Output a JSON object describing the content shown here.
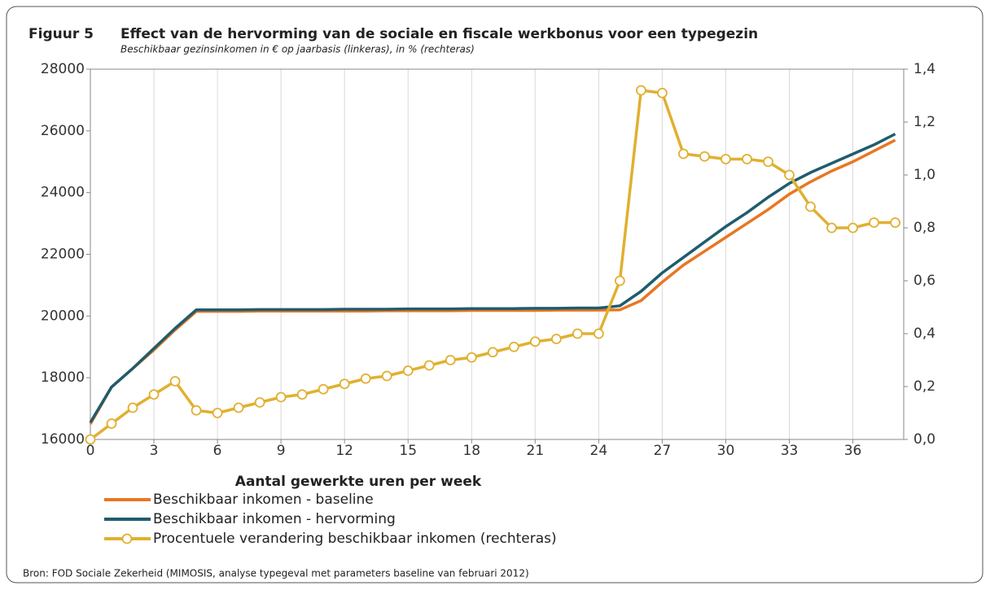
{
  "chart_data": {
    "type": "line",
    "title_label": "Figuur 5",
    "title": "Effect van de hervorming van de sociale en fiscale werkbonus voor een typegezin",
    "subtitle": "Beschikbaar gezinsinkomen in € op jaarbasis (linkeras), in % (rechteras)",
    "x_label": "Aantal gewerkte uren per week",
    "source": "Bron: FOD Sociale Zekerheid (MIMOSIS, analyse typegeval met parameters baseline van februari 2012)",
    "x": [
      0,
      1,
      2,
      3,
      4,
      5,
      6,
      7,
      8,
      9,
      10,
      11,
      12,
      13,
      14,
      15,
      16,
      17,
      18,
      19,
      20,
      21,
      22,
      23,
      24,
      25,
      26,
      27,
      28,
      29,
      30,
      31,
      32,
      33,
      34,
      35,
      36,
      37,
      38
    ],
    "xlim": [
      0,
      38.4
    ],
    "xticks": [
      0,
      3,
      6,
      9,
      12,
      15,
      18,
      21,
      24,
      27,
      30,
      33,
      36
    ],
    "ylim": [
      16000,
      28000
    ],
    "yticks": [
      16000,
      18000,
      20000,
      22000,
      24000,
      26000,
      28000
    ],
    "y2lim": [
      0,
      1.4
    ],
    "y2ticks": [
      {
        "value": 0,
        "label": "0,0"
      },
      {
        "value": 0.2,
        "label": "0,2"
      },
      {
        "value": 0.4,
        "label": "0,4"
      },
      {
        "value": 0.6,
        "label": "0,6"
      },
      {
        "value": 0.8,
        "label": "0,8"
      },
      {
        "value": 1.0,
        "label": "1,0"
      },
      {
        "value": 1.2,
        "label": "1,2"
      },
      {
        "value": 1.4,
        "label": "1,4"
      }
    ],
    "grid": true,
    "series": [
      {
        "name": "Beschikbaar inkomen - baseline",
        "color": "#e87722",
        "values": [
          16500,
          17700,
          18300,
          18900,
          19550,
          20150,
          20150,
          20150,
          20160,
          20160,
          20160,
          20160,
          20160,
          20160,
          20170,
          20170,
          20170,
          20170,
          20180,
          20180,
          20180,
          20180,
          20190,
          20190,
          20190,
          20200,
          20500,
          21100,
          21650,
          22100,
          22550,
          23000,
          23450,
          23950,
          24350,
          24700,
          25000,
          25350,
          25700
        ]
      },
      {
        "name": "Beschikbaar inkomen - hervorming",
        "color": "#1f5c6e",
        "values": [
          16550,
          17700,
          18300,
          18950,
          19600,
          20200,
          20200,
          20200,
          20210,
          20210,
          20210,
          20210,
          20220,
          20220,
          20220,
          20230,
          20230,
          20230,
          20240,
          20240,
          20240,
          20250,
          20250,
          20260,
          20260,
          20330,
          20800,
          21400,
          21900,
          22400,
          22900,
          23350,
          23850,
          24300,
          24650,
          24950,
          25250,
          25550,
          25900
        ]
      },
      {
        "name": "Procentuele verandering beschikbaar inkomen (rechteras)",
        "color": "#e0b030",
        "axis": "y2",
        "markers": true,
        "values": [
          0,
          0.06,
          0.12,
          0.17,
          0.22,
          0.11,
          0.1,
          0.12,
          0.14,
          0.16,
          0.17,
          0.19,
          0.21,
          0.23,
          0.24,
          0.26,
          0.28,
          0.3,
          0.31,
          0.33,
          0.35,
          0.37,
          0.38,
          0.4,
          0.4,
          0.6,
          1.32,
          1.31,
          1.08,
          1.07,
          1.06,
          1.06,
          1.05,
          1.0,
          0.88,
          0.8,
          0.8,
          0.82,
          0.82
        ]
      }
    ]
  }
}
